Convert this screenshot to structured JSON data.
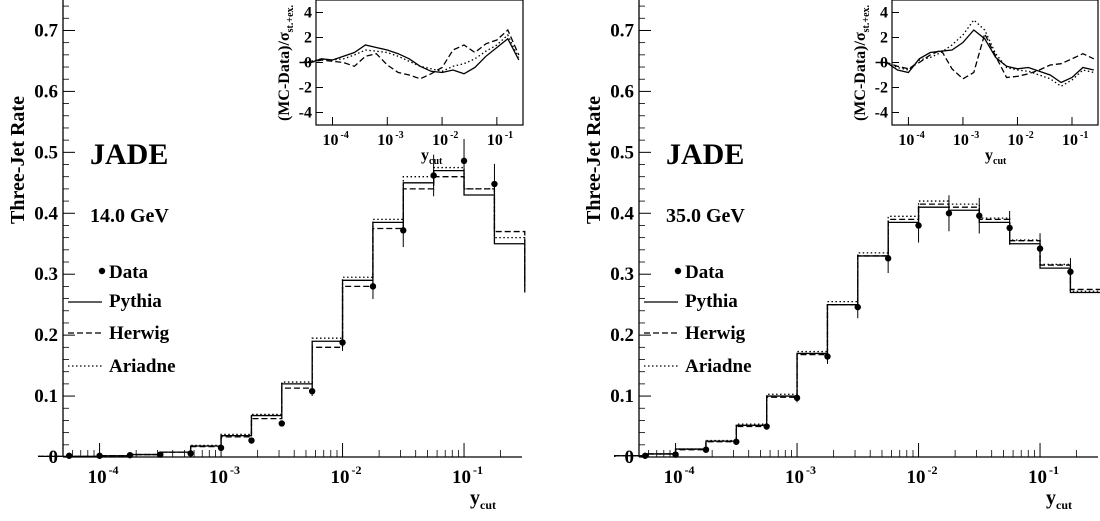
{
  "chart_data": [
    {
      "type": "line",
      "subtype": "step-histogram-with-data-points",
      "experiment_label": "JADE",
      "energy_label": "14.0 GeV",
      "ylabel": "Three-Jet Rate",
      "xlabel": "y",
      "xlabel_sub": "cut",
      "xscale": "log",
      "xlim": [
        5e-05,
        0.3
      ],
      "ylim": [
        0,
        0.75
      ],
      "y_ticks": [
        "0",
        "0.1",
        "0.2",
        "0.3",
        "0.4",
        "0.5",
        "0.6",
        "0.7"
      ],
      "x_ticks": [
        {
          "base": "10",
          "exp": "-4"
        },
        {
          "base": "10",
          "exp": "-3"
        },
        {
          "base": "10",
          "exp": "-2"
        },
        {
          "base": "10",
          "exp": "-1"
        }
      ],
      "legend_position": "left-middle",
      "legend": [
        {
          "label": "Data",
          "style": "marker"
        },
        {
          "label": "Pythia",
          "style": "solid"
        },
        {
          "label": "Herwig",
          "style": "dashed"
        },
        {
          "label": "Ariadne",
          "style": "dotted"
        }
      ],
      "data": {
        "x": [
          5.62e-05,
          0.0001,
          0.000178,
          0.000316,
          0.000562,
          0.001,
          0.00178,
          0.00316,
          0.00562,
          0.01,
          0.0178,
          0.0316,
          0.0562,
          0.1,
          0.178
        ],
        "y": [
          0.002,
          0.002,
          0.003,
          0.004,
          0.006,
          0.015,
          0.027,
          0.055,
          0.108,
          0.188,
          0.28,
          0.372,
          0.462,
          0.486,
          0.448
        ]
      },
      "series": [
        {
          "name": "Pythia",
          "style": "solid",
          "edges_log10": [
            -4.5,
            -4.25,
            -4.0,
            -3.75,
            -3.5,
            -3.25,
            -3.0,
            -2.75,
            -2.5,
            -2.25,
            -2.0,
            -1.75,
            -1.5,
            -1.25,
            -1.0,
            -0.75,
            -0.5
          ],
          "values": [
            0.001,
            0.001,
            0.002,
            0.004,
            0.008,
            0.018,
            0.035,
            0.068,
            0.12,
            0.19,
            0.29,
            0.385,
            0.45,
            0.47,
            0.43,
            0.35,
            0.27
          ]
        },
        {
          "name": "Herwig",
          "style": "dashed",
          "values": [
            0.001,
            0.001,
            0.002,
            0.004,
            0.008,
            0.017,
            0.033,
            0.063,
            0.113,
            0.18,
            0.28,
            0.375,
            0.44,
            0.46,
            0.44,
            0.37,
            0.29
          ]
        },
        {
          "name": "Ariadne",
          "style": "dotted",
          "values": [
            0.001,
            0.001,
            0.002,
            0.004,
            0.008,
            0.019,
            0.037,
            0.07,
            0.123,
            0.195,
            0.295,
            0.39,
            0.46,
            0.475,
            0.44,
            0.36,
            0.28
          ]
        }
      ],
      "inset": {
        "ylabel": "(MC-Data)/σ",
        "ylabel_sub": "st.+ex.",
        "xlabel": "y",
        "xlabel_sub": "cut",
        "ylim": [
          -5,
          5
        ],
        "y_ticks": [
          "4",
          "2",
          "0",
          "-2",
          "-4"
        ],
        "x_ticks": [
          {
            "base": "10",
            "exp": "-4"
          },
          {
            "base": "10",
            "exp": "-3"
          },
          {
            "base": "10",
            "exp": "-2"
          },
          {
            "base": "10",
            "exp": "-1"
          }
        ],
        "x_log10": [
          -4.6,
          -4.4,
          -4.2,
          -4.0,
          -3.8,
          -3.6,
          -3.4,
          -3.2,
          -3.0,
          -2.8,
          -2.6,
          -2.4,
          -2.2,
          -2.0,
          -1.8,
          -1.6,
          -1.4,
          -1.2,
          -1.0,
          -0.8,
          -0.6
        ],
        "series": [
          {
            "name": "Pythia",
            "style": "solid",
            "values": [
              0,
              0,
              0.3,
              0.2,
              0.5,
              0.8,
              1.4,
              1.2,
              1.0,
              0.7,
              0.3,
              -0.3,
              -0.7,
              -0.8,
              -0.6,
              -0.9,
              -0.4,
              0.5,
              1.2,
              1.9,
              0.2
            ]
          },
          {
            "name": "Herwig",
            "style": "dashed",
            "values": [
              0,
              0,
              0.2,
              0.1,
              0.0,
              -0.3,
              0.5,
              0.7,
              -0.2,
              -0.8,
              -1.0,
              -1.3,
              -0.9,
              -0.4,
              1.0,
              1.4,
              0.8,
              1.5,
              1.8,
              2.6,
              0.6
            ]
          },
          {
            "name": "Ariadne",
            "style": "dotted",
            "values": [
              0,
              0.1,
              0.3,
              0.2,
              0.3,
              0.6,
              1.0,
              0.9,
              0.8,
              0.5,
              0.1,
              -0.3,
              -0.5,
              -0.7,
              -0.3,
              -0.1,
              0.3,
              0.9,
              1.4,
              2.2,
              0.3
            ]
          }
        ]
      }
    },
    {
      "type": "line",
      "subtype": "step-histogram-with-data-points",
      "experiment_label": "JADE",
      "energy_label": "35.0 GeV",
      "ylabel": "Three-Jet Rate",
      "xlabel": "y",
      "xlabel_sub": "cut",
      "xscale": "log",
      "xlim": [
        5e-05,
        0.3
      ],
      "ylim": [
        0,
        0.75
      ],
      "y_ticks": [
        "0",
        "0.1",
        "0.2",
        "0.3",
        "0.4",
        "0.5",
        "0.6",
        "0.7"
      ],
      "x_ticks": [
        {
          "base": "10",
          "exp": "-4"
        },
        {
          "base": "10",
          "exp": "-3"
        },
        {
          "base": "10",
          "exp": "-2"
        },
        {
          "base": "10",
          "exp": "-1"
        }
      ],
      "legend_position": "left-middle",
      "legend": [
        {
          "label": "Data",
          "style": "marker"
        },
        {
          "label": "Pythia",
          "style": "solid"
        },
        {
          "label": "Herwig",
          "style": "dashed"
        },
        {
          "label": "Ariadne",
          "style": "dotted"
        }
      ],
      "data": {
        "x": [
          5.62e-05,
          0.0001,
          0.000178,
          0.000316,
          0.000562,
          0.001,
          0.00178,
          0.00316,
          0.00562,
          0.01,
          0.0178,
          0.0316,
          0.0562,
          0.1,
          0.178
        ],
        "y": [
          0.002,
          0.004,
          0.012,
          0.025,
          0.05,
          0.097,
          0.165,
          0.246,
          0.326,
          0.38,
          0.4,
          0.396,
          0.376,
          0.342,
          0.304
        ]
      },
      "series": [
        {
          "name": "Pythia",
          "style": "solid",
          "edges_log10": [
            -4.5,
            -4.25,
            -4.0,
            -3.75,
            -3.5,
            -3.25,
            -3.0,
            -2.75,
            -2.5,
            -2.25,
            -2.0,
            -1.75,
            -1.5,
            -1.25,
            -1.0,
            -0.75,
            -0.5
          ],
          "values": [
            0.002,
            0.005,
            0.013,
            0.026,
            0.052,
            0.1,
            0.17,
            0.25,
            0.33,
            0.385,
            0.41,
            0.405,
            0.385,
            0.35,
            0.31,
            0.27,
            0.22
          ]
        },
        {
          "name": "Herwig",
          "style": "dashed",
          "values": [
            0.002,
            0.005,
            0.012,
            0.025,
            0.05,
            0.098,
            0.168,
            0.25,
            0.33,
            0.39,
            0.415,
            0.41,
            0.39,
            0.355,
            0.315,
            0.275,
            0.225
          ]
        },
        {
          "name": "Ariadne",
          "style": "dotted",
          "values": [
            0.002,
            0.005,
            0.013,
            0.027,
            0.054,
            0.103,
            0.173,
            0.255,
            0.335,
            0.395,
            0.42,
            0.415,
            0.392,
            0.356,
            0.316,
            0.272,
            0.222
          ]
        }
      ],
      "inset": {
        "ylabel": "(MC-Data)/σ",
        "ylabel_sub": "st.+ex.",
        "xlabel": "y",
        "xlabel_sub": "cut",
        "ylim": [
          -5,
          5
        ],
        "y_ticks": [
          "4",
          "2",
          "0",
          "-2",
          "-4"
        ],
        "x_ticks": [
          {
            "base": "10",
            "exp": "-4"
          },
          {
            "base": "10",
            "exp": "-3"
          },
          {
            "base": "10",
            "exp": "-2"
          },
          {
            "base": "10",
            "exp": "-1"
          }
        ],
        "x_log10": [
          -4.6,
          -4.4,
          -4.2,
          -4.0,
          -3.8,
          -3.6,
          -3.4,
          -3.2,
          -3.0,
          -2.8,
          -2.6,
          -2.4,
          -2.2,
          -2.0,
          -1.8,
          -1.6,
          -1.4,
          -1.2,
          -1.0,
          -0.8,
          -0.6
        ],
        "series": [
          {
            "name": "Pythia",
            "style": "solid",
            "values": [
              0,
              0,
              -0.6,
              -0.8,
              0.3,
              0.8,
              0.9,
              1.0,
              1.6,
              2.6,
              1.9,
              0.4,
              -0.3,
              -0.5,
              -0.4,
              -0.7,
              -1.0,
              -1.6,
              -1.2,
              -0.4,
              -0.6
            ]
          },
          {
            "name": "Herwig",
            "style": "dashed",
            "values": [
              0,
              0,
              -0.3,
              -0.5,
              0.0,
              0.6,
              1.0,
              -0.5,
              -1.3,
              -0.8,
              2.3,
              0.5,
              -1.2,
              -1.1,
              -0.9,
              -0.6,
              -0.2,
              -0.1,
              0.3,
              0.7,
              0.3
            ]
          },
          {
            "name": "Ariadne",
            "style": "dotted",
            "values": [
              0,
              0,
              -0.4,
              -0.6,
              0.2,
              0.4,
              0.8,
              1.4,
              2.2,
              3.4,
              2.6,
              0.7,
              -0.4,
              -0.6,
              -0.7,
              -1.0,
              -1.3,
              -1.9,
              -1.4,
              -0.6,
              -0.8
            ]
          }
        ]
      }
    }
  ]
}
